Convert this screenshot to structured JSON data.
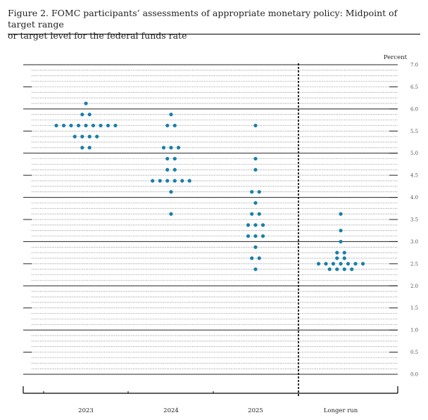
{
  "figure": {
    "title_line1": "Figure 2.  FOMC participants’ assessments of appropriate monetary policy:  Midpoint of target range",
    "title_line2": "or target level for the federal funds rate"
  },
  "chart_data": {
    "type": "scatter",
    "title": "Figure 2. FOMC participants’ assessments of appropriate monetary policy: Midpoint of target range or target level for the federal funds rate",
    "ylabel": "Percent",
    "ylim": [
      0,
      7
    ],
    "yticks": [
      "0.0",
      "0.5",
      "1.0",
      "1.5",
      "2.0",
      "2.5",
      "3.0",
      "3.5",
      "4.0",
      "4.5",
      "5.0",
      "5.5",
      "6.0",
      "6.5",
      "7.0"
    ],
    "grid": "dotted every 0.125, solid every 1.0",
    "categories": [
      "2023",
      "2024",
      "2025",
      "Longer run"
    ],
    "separator_before": "Longer run",
    "dot_color": "#1a7fa8",
    "series": [
      {
        "category": "2023",
        "points": [
          {
            "y": 6.125,
            "n": 1
          },
          {
            "y": 5.875,
            "n": 2
          },
          {
            "y": 5.625,
            "n": 9
          },
          {
            "y": 5.375,
            "n": 4
          },
          {
            "y": 5.125,
            "n": 2
          }
        ]
      },
      {
        "category": "2024",
        "points": [
          {
            "y": 5.875,
            "n": 1
          },
          {
            "y": 5.625,
            "n": 2
          },
          {
            "y": 5.125,
            "n": 3
          },
          {
            "y": 4.875,
            "n": 2
          },
          {
            "y": 4.625,
            "n": 2
          },
          {
            "y": 4.375,
            "n": 6
          },
          {
            "y": 4.125,
            "n": 1
          },
          {
            "y": 3.625,
            "n": 1
          }
        ]
      },
      {
        "category": "2025",
        "points": [
          {
            "y": 5.625,
            "n": 1
          },
          {
            "y": 4.875,
            "n": 1
          },
          {
            "y": 4.625,
            "n": 1
          },
          {
            "y": 4.125,
            "n": 2
          },
          {
            "y": 3.875,
            "n": 1
          },
          {
            "y": 3.625,
            "n": 2
          },
          {
            "y": 3.375,
            "n": 3
          },
          {
            "y": 3.125,
            "n": 3
          },
          {
            "y": 2.875,
            "n": 1
          },
          {
            "y": 2.625,
            "n": 2
          },
          {
            "y": 2.375,
            "n": 1
          }
        ]
      },
      {
        "category": "Longer run",
        "points": [
          {
            "y": 3.625,
            "n": 1
          },
          {
            "y": 3.25,
            "n": 1
          },
          {
            "y": 3.0,
            "n": 1
          },
          {
            "y": 2.75,
            "n": 2
          },
          {
            "y": 2.625,
            "n": 2
          },
          {
            "y": 2.5,
            "n": 7
          },
          {
            "y": 2.375,
            "n": 4
          }
        ]
      }
    ]
  }
}
